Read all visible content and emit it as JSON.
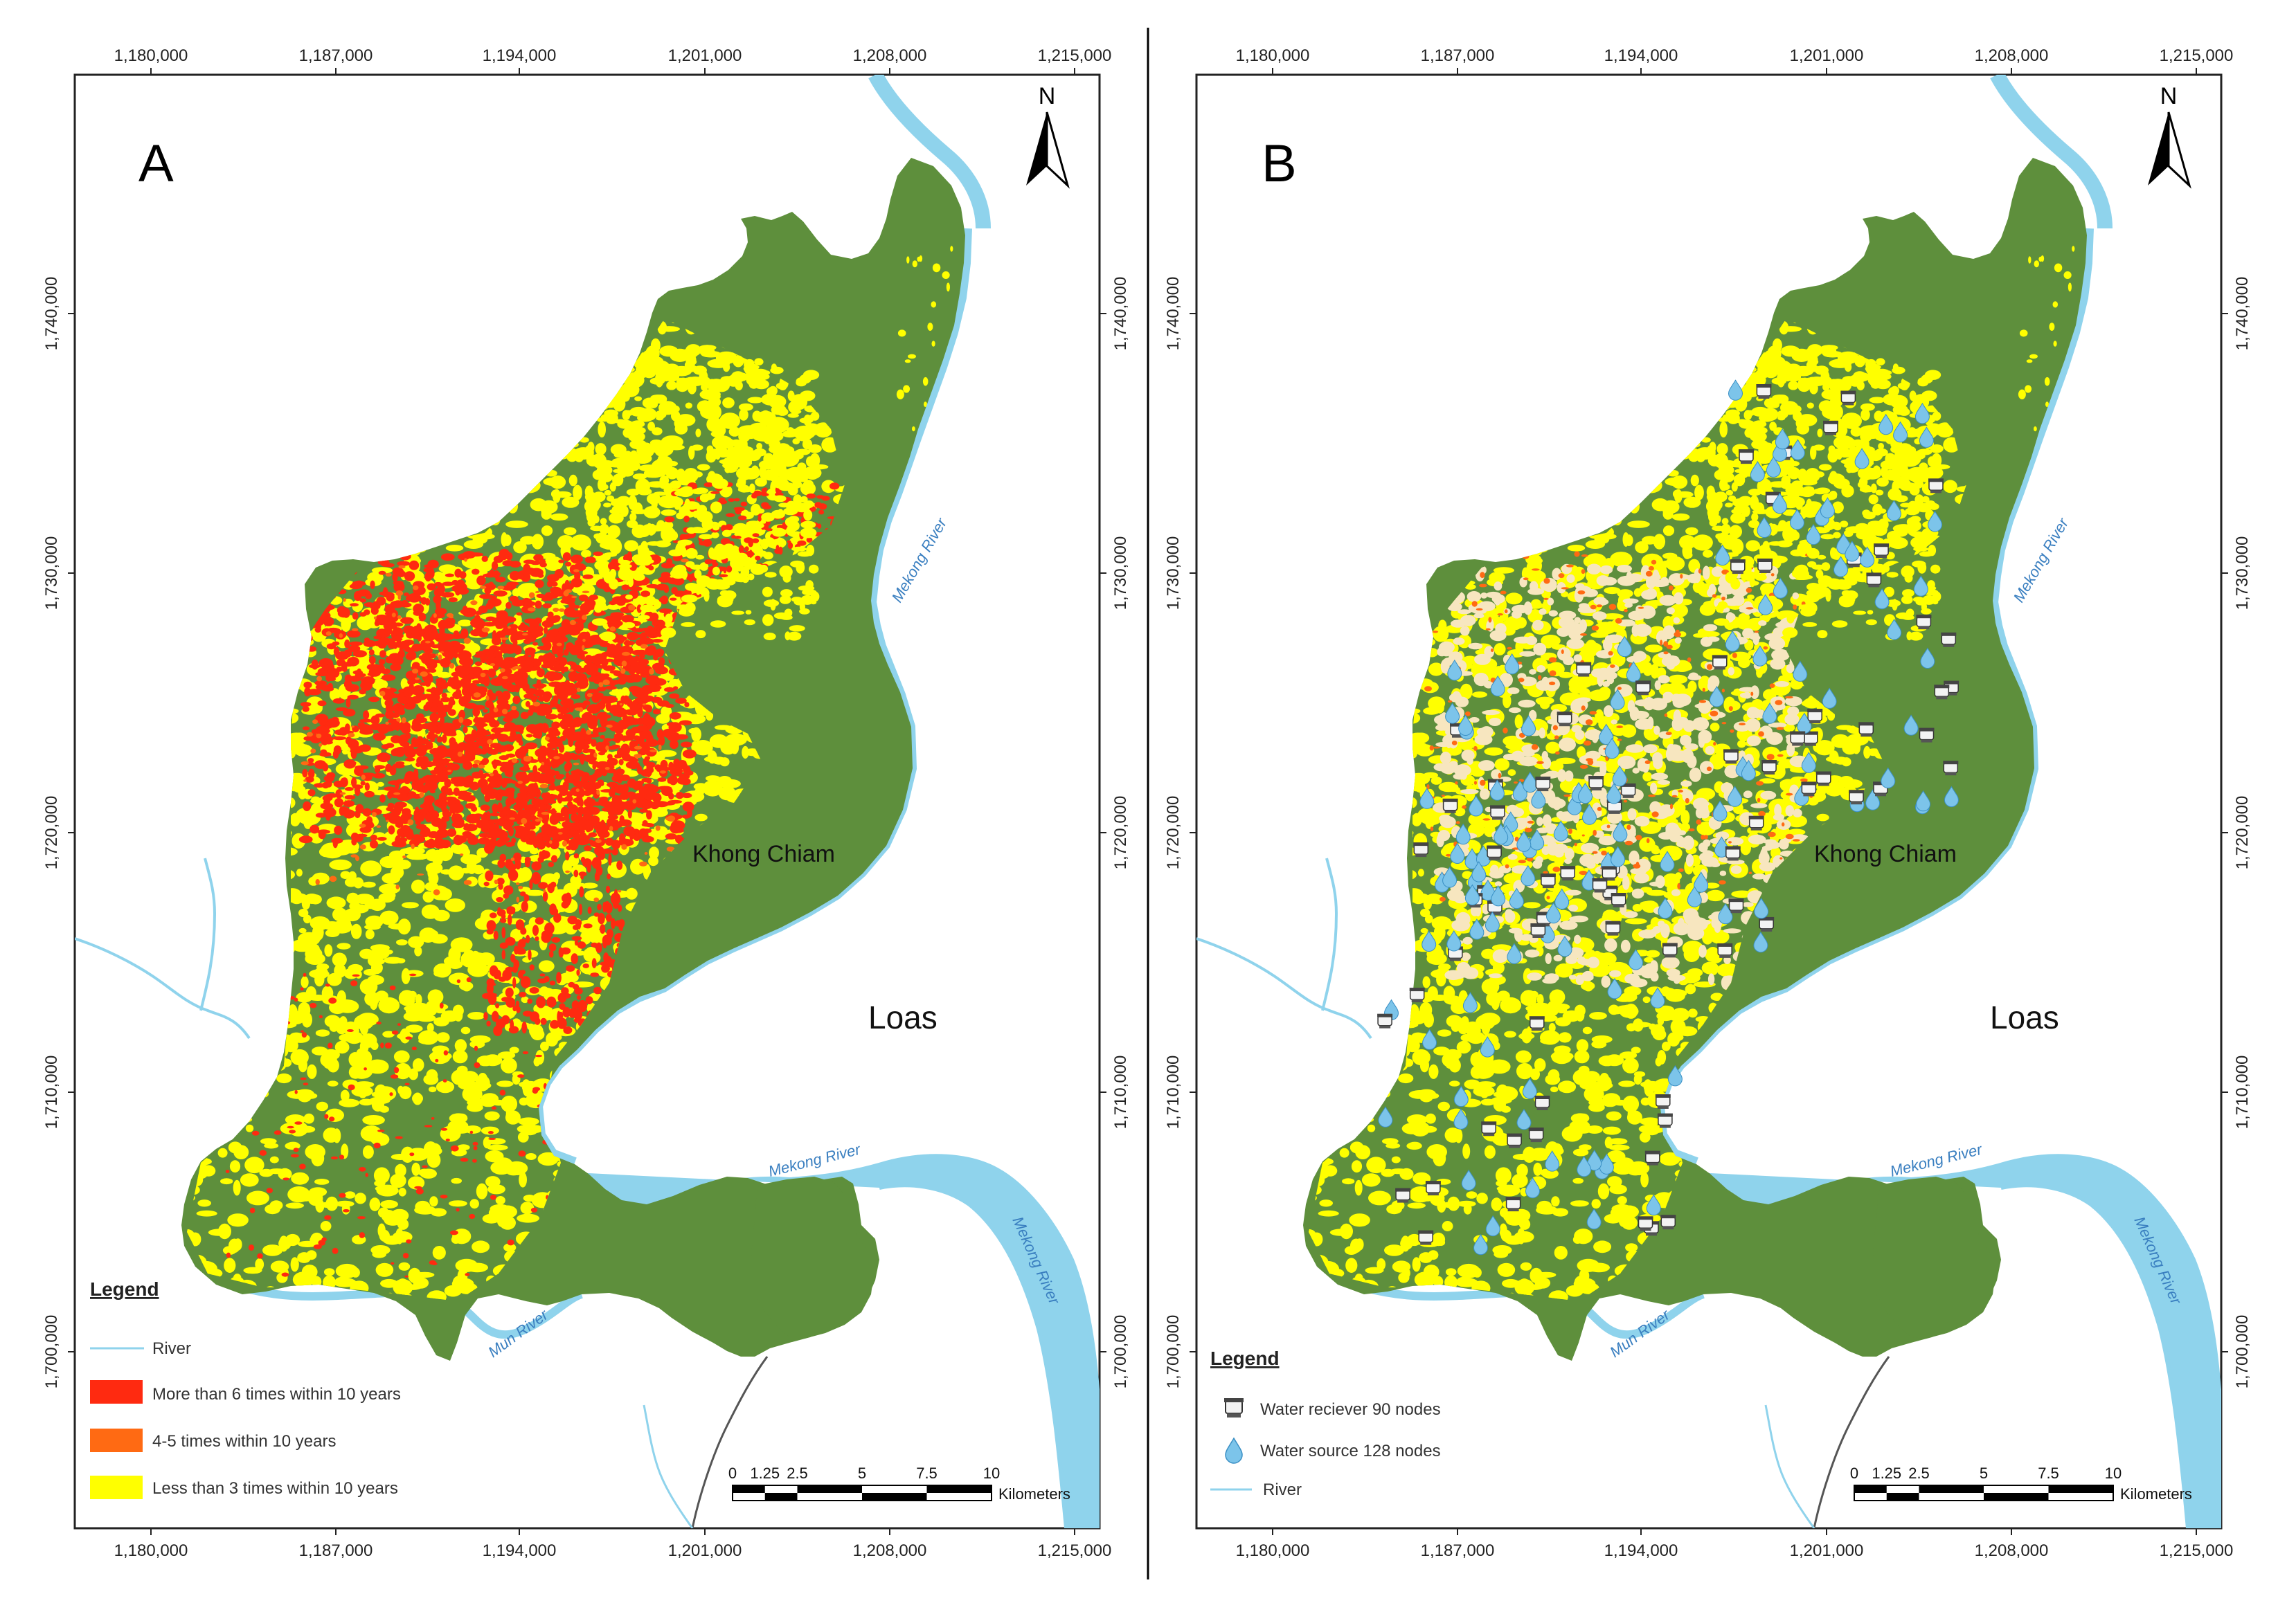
{
  "figure": {
    "x_ticks": [
      "1,180,000",
      "1,187,000",
      "1,194,000",
      "1,201,000",
      "1,208,000",
      "1,215,000"
    ],
    "y_ticks": [
      "1,740,000",
      "1,730,000",
      "1,720,000",
      "1,710,000",
      "1,700,000"
    ],
    "north_label": "N",
    "place_khong_chiam": "Khong Chiam",
    "place_laos": "Loas",
    "river_mekong": "Mekong River",
    "river_mun": "Mun River",
    "scale": {
      "ticks": [
        "0",
        "1.25",
        "2.5",
        "5",
        "7.5",
        "10"
      ],
      "unit": "Kilometers"
    },
    "colors": {
      "land": "#5e8f3c",
      "water": "#8fd3ec",
      "river_line": "#8fd3ec",
      "high_freq": "#ff2a10",
      "mid_freq": "#ff6a13",
      "low_freq": "#ffff00"
    }
  },
  "panel_a": {
    "letter": "A",
    "legend_title": "Legend",
    "legend_items": [
      {
        "label": "River",
        "swatch": "line"
      },
      {
        "label": "More than 6 times within 10 years",
        "swatch": "high_freq"
      },
      {
        "label": "4-5 times within 10 years",
        "swatch": "mid_freq"
      },
      {
        "label": "Less  than 3 times within 10 years",
        "swatch": "low_freq"
      }
    ]
  },
  "panel_b": {
    "letter": "B",
    "legend_title": "Legend",
    "legend_items": [
      {
        "label": "Water reciever  90 nodes",
        "swatch": "tank-icon"
      },
      {
        "label": "Water source 128 nodes",
        "swatch": "droplet-icon"
      },
      {
        "label": "River",
        "swatch": "line"
      }
    ]
  }
}
